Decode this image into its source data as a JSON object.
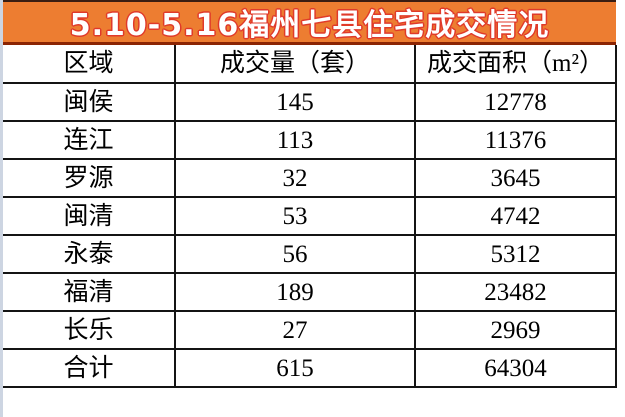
{
  "colors": {
    "title_bg": "#ED7D31",
    "title_text": "#FFFFFF",
    "title_outline": "#E03A2A",
    "title_underline": "#8B2403",
    "top_edge_line": "#3A1D12",
    "left_edge_strip": "#CDD5E2",
    "table_border": "#141414",
    "cell_bg": "#FFFFFF",
    "cell_text": "#000000"
  },
  "chart_data": {
    "type": "table",
    "title": "5.10-5.16福州七县住宅成交情况",
    "columns": [
      "区域",
      "成交量（套）",
      "成交面积（m²）"
    ],
    "rows": [
      [
        "闽侯",
        145,
        12778
      ],
      [
        "连江",
        113,
        11376
      ],
      [
        "罗源",
        32,
        3645
      ],
      [
        "闽清",
        53,
        4742
      ],
      [
        "永泰",
        56,
        5312
      ],
      [
        "福清",
        189,
        23482
      ],
      [
        "长乐",
        27,
        2969
      ],
      [
        "合计",
        615,
        64304
      ]
    ],
    "totals_row_label": "合计",
    "layout": {
      "grid": true,
      "header_row": true,
      "title_position": "top-banner"
    }
  }
}
